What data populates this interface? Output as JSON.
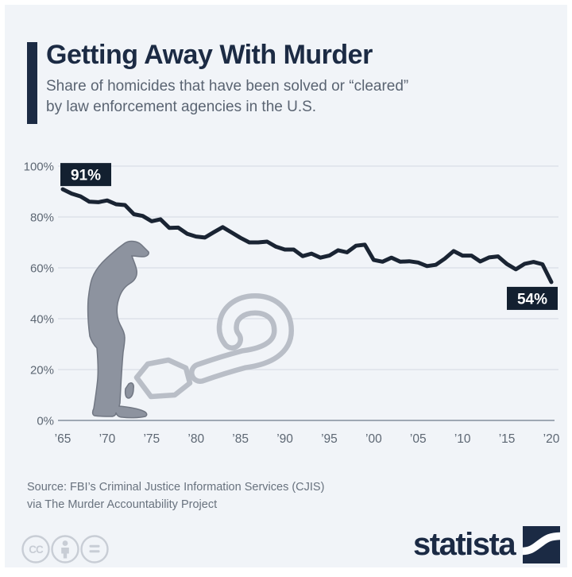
{
  "page": {
    "background": "#f1f4f8",
    "frame_color": "#ffffff"
  },
  "header": {
    "accent_color": "#1c2b44",
    "title": "Getting Away With Murder",
    "subtitle_line1": "Share of homicides that have been solved or “cleared”",
    "subtitle_line2": "by law enforcement agencies in the U.S."
  },
  "chart_data": {
    "type": "line",
    "title": "Getting Away With Murder",
    "years_start": 1965,
    "years_end": 2020,
    "values": [
      90.9,
      89.2,
      88.1,
      86.0,
      85.8,
      86.5,
      85.0,
      84.7,
      81.1,
      80.4,
      78.3,
      79.1,
      75.7,
      75.8,
      73.4,
      72.3,
      71.9,
      74.0,
      76.0,
      73.9,
      71.8,
      70.0,
      70.0,
      70.3,
      68.3,
      67.2,
      67.2,
      64.6,
      65.6,
      64.0,
      64.8,
      66.9,
      66.1,
      68.7,
      69.1,
      63.1,
      62.4,
      64.0,
      62.4,
      62.6,
      62.1,
      60.7,
      61.2,
      63.6,
      66.6,
      64.8,
      64.8,
      62.5,
      64.1,
      64.5,
      61.5,
      59.4,
      61.6,
      62.3,
      61.4,
      54.4
    ],
    "ylim": [
      0,
      100
    ],
    "y_tick_labels": [
      "0%",
      "20%",
      "40%",
      "60%",
      "80%",
      "100%"
    ],
    "x_tick_years": [
      1965,
      1970,
      1975,
      1980,
      1985,
      1990,
      1995,
      2000,
      2005,
      2010,
      2015,
      2020
    ],
    "x_tick_labels": [
      "’65",
      "’70",
      "’75",
      "’80",
      "’85",
      "’90",
      "’95",
      "’00",
      "’05",
      "’10",
      "’15",
      "’20"
    ],
    "grid": true,
    "legend": "none",
    "line_color": "#1a2433",
    "grid_color": "#dde2e9",
    "axis_color": "#939daa",
    "tick_text_color": "#5d6773",
    "annotation_bg": "#132030",
    "annotation_text_color": "#ffffff",
    "annotations": [
      {
        "year": 1965,
        "label": "91%",
        "placement": "above-start"
      },
      {
        "year": 2020,
        "label": "54%",
        "placement": "below-end"
      }
    ],
    "decorations": {
      "officer_color": "#8d939f",
      "officer_outline": "#717783",
      "question_mark_color": "#b9bec7"
    }
  },
  "footer": {
    "source_line1": "Source: FBI’s Criminal Justice Information Services (CJIS)",
    "source_line2": "via The Murder Accountability Project",
    "license_icons": [
      "cc-icon",
      "attribution-icon",
      "no-derivatives-icon"
    ],
    "brand_text": "statista",
    "brand_color": "#1b2a44"
  }
}
